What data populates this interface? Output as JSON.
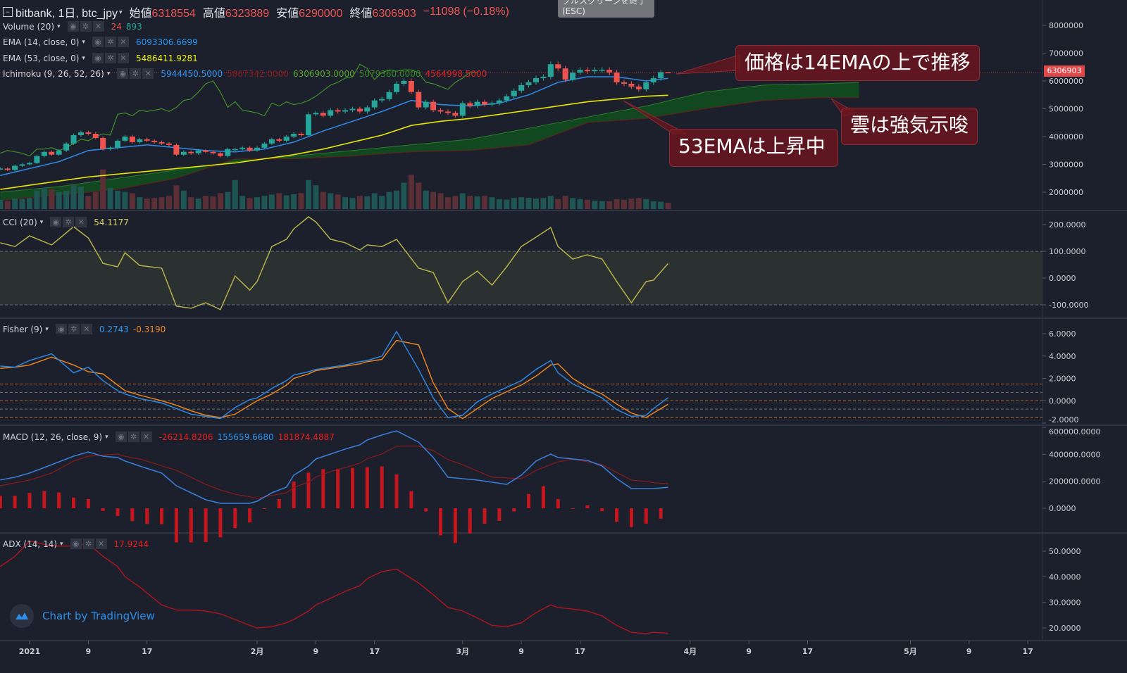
{
  "header": {
    "symbol": "bitbank, 1日, btc_jpy",
    "open_label": "始値",
    "open": "6318554",
    "high_label": "高値",
    "high": "6323889",
    "low_label": "安値",
    "low": "6290000",
    "close_label": "終値",
    "close": "6306903",
    "change": "−11098",
    "change_pct": "(−0.18%)"
  },
  "tooltip": "フルスクリーンを終了 (ESC)",
  "legends": {
    "volume": {
      "name": "Volume (20)",
      "v1": "24",
      "v2": "893"
    },
    "ema14": {
      "name": "EMA (14, close, 0)",
      "v1": "6093306.6699"
    },
    "ema53": {
      "name": "EMA (53, close, 0)",
      "v1": "5486411.9281"
    },
    "ichimoku": {
      "name": "Ichimoku (9, 26, 52, 26)",
      "v1": "5944450.5000",
      "v2": "5867342.0000",
      "v3": "6306903.0000",
      "v4": "5079360.0000",
      "v5": "4564998.5000"
    },
    "cci": {
      "name": "CCI (20)",
      "v1": "54.1177"
    },
    "fisher": {
      "name": "Fisher (9)",
      "v1": "0.2743",
      "v2": "-0.3190"
    },
    "macd": {
      "name": "MACD (12, 26, close, 9)",
      "v1": "-26214.8206",
      "v2": "155659.6680",
      "v3": "181874.4887"
    },
    "adx": {
      "name": "ADX (14, 14)",
      "v1": "17.9244"
    }
  },
  "controls": {
    "eye": "◉",
    "gear": "✲",
    "close": "✕",
    "caret": "▾"
  },
  "annotations": {
    "a1": "価格は14EMAの上で推移",
    "a2": "雲は強気示唆",
    "a3": "53EMAは上昇中"
  },
  "last_price_tag": "6306903",
  "watermark": "Chart by TradingView",
  "colors": {
    "background": "#1b202c",
    "up": "#26a69a",
    "down": "#ef5350",
    "ema14": "#2e86de",
    "ema53": "#e6e600",
    "lagging": "#3f8f2a",
    "cloud": "#124d1f",
    "cci": "#b5b04a",
    "fisher": "#2e86de",
    "fisher_trigger": "#e6821e",
    "macd": "#3a7bd5",
    "signal": "#8b1a1a",
    "histogram": "#c4161c",
    "adx": "#b0141c"
  },
  "chart_data": {
    "type": "candlestick-with-indicators",
    "x_ticks": [
      {
        "date": "2021-01-01",
        "label": "2021"
      },
      {
        "date": "2021-01-09",
        "label": "9"
      },
      {
        "date": "2021-01-17",
        "label": "17"
      },
      {
        "date": "2021-02-01",
        "label": "2月"
      },
      {
        "date": "2021-02-09",
        "label": "9"
      },
      {
        "date": "2021-02-17",
        "label": "17"
      },
      {
        "date": "2021-03-01",
        "label": "3月"
      },
      {
        "date": "2021-03-09",
        "label": "9"
      },
      {
        "date": "2021-03-17",
        "label": "17"
      },
      {
        "date": "2021-04-01",
        "label": "4月"
      },
      {
        "date": "2021-04-09",
        "label": "9"
      },
      {
        "date": "2021-04-17",
        "label": "17"
      },
      {
        "date": "2021-05-01",
        "label": "5月"
      },
      {
        "date": "2021-05-09",
        "label": "9"
      },
      {
        "date": "2021-05-17",
        "label": "17"
      }
    ],
    "price_axis": {
      "ticks": [
        8000000,
        7000000,
        6000000,
        5000000,
        4000000,
        3000000,
        2000000
      ],
      "labels": [
        "8000000",
        "7000000",
        "6000000",
        "5000000",
        "4000000",
        "3000000",
        "2000000"
      ]
    },
    "cci_axis": {
      "ticks": [
        200,
        100,
        0,
        -100
      ],
      "labels": [
        "200.0000",
        "100.0000",
        "0.0000",
        "-100.0000"
      ],
      "band": [
        -100,
        100
      ]
    },
    "fisher_axis": {
      "ticks": [
        6,
        4,
        2,
        0,
        -2
      ],
      "labels": [
        "6.0000",
        "4.0000",
        "2.0000",
        "0.0000",
        "-2.0000"
      ],
      "levels": [
        1.5,
        0.75,
        0,
        -0.75,
        -1.5
      ]
    },
    "macd_axis": {
      "ticks": [
        600000,
        400000,
        200000,
        0
      ],
      "labels": [
        "600000.0000",
        "400000.0000",
        "200000.0000",
        "0.0000"
      ]
    },
    "adx_axis": {
      "ticks": [
        50,
        40,
        30,
        20
      ],
      "labels": [
        "50.0000",
        "40.0000",
        "30.0000",
        "20.0000"
      ]
    },
    "last_candle": {
      "open": 6318554,
      "high": 6323889,
      "low": 6290000,
      "close": 6306903
    },
    "candles_date_close_volume": [
      [
        "2020-12-28",
        2850000,
        350
      ],
      [
        "2020-12-29",
        2800000,
        300
      ],
      [
        "2020-12-30",
        2950000,
        400
      ],
      [
        "2020-12-31",
        3000000,
        380
      ],
      [
        "2021-01-01",
        3050000,
        420
      ],
      [
        "2021-01-02",
        3300000,
        700
      ],
      [
        "2021-01-03",
        3450000,
        800
      ],
      [
        "2021-01-04",
        3350000,
        750
      ],
      [
        "2021-01-05",
        3500000,
        650
      ],
      [
        "2021-01-06",
        3750000,
        700
      ],
      [
        "2021-01-07",
        4050000,
        900
      ],
      [
        "2021-01-08",
        4150000,
        850
      ],
      [
        "2021-01-09",
        4100000,
        500
      ],
      [
        "2021-01-10",
        3950000,
        650
      ],
      [
        "2021-01-11",
        3550000,
        1500
      ],
      [
        "2021-01-12",
        3600000,
        800
      ],
      [
        "2021-01-13",
        3850000,
        700
      ],
      [
        "2021-01-14",
        4000000,
        650
      ],
      [
        "2021-01-15",
        3800000,
        600
      ],
      [
        "2021-01-16",
        3900000,
        450
      ],
      [
        "2021-01-17",
        3850000,
        400
      ],
      [
        "2021-01-18",
        3800000,
        420
      ],
      [
        "2021-01-19",
        3750000,
        450
      ],
      [
        "2021-01-20",
        3700000,
        500
      ],
      [
        "2021-01-21",
        3350000,
        900
      ],
      [
        "2021-01-22",
        3450000,
        700
      ],
      [
        "2021-01-23",
        3400000,
        450
      ],
      [
        "2021-01-24",
        3500000,
        400
      ],
      [
        "2021-01-25",
        3450000,
        500
      ],
      [
        "2021-01-26",
        3400000,
        480
      ],
      [
        "2021-01-27",
        3300000,
        600
      ],
      [
        "2021-01-28",
        3550000,
        650
      ],
      [
        "2021-01-29",
        3550000,
        1100
      ],
      [
        "2021-01-30",
        3600000,
        500
      ],
      [
        "2021-01-31",
        3500000,
        420
      ],
      [
        "2021-02-01",
        3600000,
        450
      ],
      [
        "2021-02-02",
        3750000,
        500
      ],
      [
        "2021-02-03",
        3900000,
        550
      ],
      [
        "2021-02-04",
        3850000,
        600
      ],
      [
        "2021-02-05",
        4000000,
        520
      ],
      [
        "2021-02-06",
        4100000,
        560
      ],
      [
        "2021-02-07",
        4050000,
        600
      ],
      [
        "2021-02-08",
        4800000,
        1100
      ],
      [
        "2021-02-09",
        4850000,
        900
      ],
      [
        "2021-02-10",
        4750000,
        650
      ],
      [
        "2021-02-11",
        4950000,
        600
      ],
      [
        "2021-02-12",
        4900000,
        550
      ],
      [
        "2021-02-13",
        4950000,
        450
      ],
      [
        "2021-02-14",
        5000000,
        420
      ],
      [
        "2021-02-15",
        4900000,
        500
      ],
      [
        "2021-02-16",
        5050000,
        480
      ],
      [
        "2021-02-17",
        5300000,
        600
      ],
      [
        "2021-02-18",
        5350000,
        500
      ],
      [
        "2021-02-19",
        5600000,
        650
      ],
      [
        "2021-02-20",
        5900000,
        700
      ],
      [
        "2021-02-21",
        6000000,
        1000
      ],
      [
        "2021-02-22",
        5600000,
        1300
      ],
      [
        "2021-02-23",
        5050000,
        1000
      ],
      [
        "2021-02-24",
        5250000,
        700
      ],
      [
        "2021-02-25",
        4950000,
        650
      ],
      [
        "2021-02-26",
        4900000,
        600
      ],
      [
        "2021-02-27",
        4850000,
        450
      ],
      [
        "2021-02-28",
        4750000,
        500
      ],
      [
        "2021-03-01",
        5200000,
        600
      ],
      [
        "2021-03-02",
        5100000,
        500
      ],
      [
        "2021-03-03",
        5250000,
        480
      ],
      [
        "2021-03-04",
        5150000,
        500
      ],
      [
        "2021-03-05",
        5200000,
        450
      ],
      [
        "2021-03-06",
        5300000,
        380
      ],
      [
        "2021-03-07",
        5450000,
        360
      ],
      [
        "2021-03-08",
        5650000,
        420
      ],
      [
        "2021-03-09",
        5850000,
        450
      ],
      [
        "2021-03-10",
        5950000,
        430
      ],
      [
        "2021-03-11",
        6100000,
        400
      ],
      [
        "2021-03-12",
        6150000,
        420
      ],
      [
        "2021-03-13",
        6600000,
        500
      ],
      [
        "2021-03-14",
        6450000,
        380
      ],
      [
        "2021-03-15",
        6050000,
        500
      ],
      [
        "2021-03-16",
        6300000,
        420
      ],
      [
        "2021-03-17",
        6400000,
        380
      ],
      [
        "2021-03-18",
        6350000,
        350
      ],
      [
        "2021-03-19",
        6400000,
        320
      ],
      [
        "2021-03-20",
        6400000,
        300
      ],
      [
        "2021-03-21",
        6300000,
        300
      ],
      [
        "2021-03-22",
        5950000,
        380
      ],
      [
        "2021-03-23",
        5900000,
        350
      ],
      [
        "2021-03-24",
        5800000,
        400
      ],
      [
        "2021-03-25",
        5700000,
        420
      ],
      [
        "2021-03-26",
        5950000,
        380
      ],
      [
        "2021-03-27",
        6100000,
        300
      ],
      [
        "2021-03-28",
        6318554,
        280
      ],
      [
        "2021-03-29",
        6306903,
        240
      ]
    ],
    "ema": {
      "dates": [
        "2020-12-28",
        "2021-01-01",
        "2021-01-05",
        "2021-01-09",
        "2021-01-13",
        "2021-01-17",
        "2021-01-21",
        "2021-01-25",
        "2021-01-29",
        "2021-02-02",
        "2021-02-06",
        "2021-02-10",
        "2021-02-14",
        "2021-02-18",
        "2021-02-22",
        "2021-02-26",
        "2021-03-02",
        "2021-03-06",
        "2021-03-10",
        "2021-03-14",
        "2021-03-18",
        "2021-03-22",
        "2021-03-26",
        "2021-03-29"
      ],
      "ema14": [
        2600000,
        2850000,
        3100000,
        3500000,
        3600000,
        3700000,
        3600000,
        3500000,
        3450000,
        3550000,
        3800000,
        4200000,
        4550000,
        4900000,
        5300000,
        5150000,
        5100000,
        5200000,
        5500000,
        5950000,
        6150000,
        6150000,
        6000000,
        6093307
      ],
      "ema53": [
        2100000,
        2250000,
        2400000,
        2550000,
        2650000,
        2750000,
        2850000,
        2950000,
        3050000,
        3200000,
        3350000,
        3550000,
        3800000,
        4050000,
        4400000,
        4550000,
        4650000,
        4800000,
        4950000,
        5100000,
        5250000,
        5350000,
        5450000,
        5486412
      ]
    },
    "ichimoku_cloud": {
      "dates": [
        "2020-12-28",
        "2021-01-05",
        "2021-01-13",
        "2021-01-21",
        "2021-01-29",
        "2021-02-06",
        "2021-02-14",
        "2021-02-22",
        "2021-03-02",
        "2021-03-10",
        "2021-03-18",
        "2021-03-26",
        "2021-04-03",
        "2021-04-11",
        "2021-04-19",
        "2021-04-24"
      ],
      "span_a": [
        2000000,
        2200000,
        2500000,
        2800000,
        3100000,
        3300000,
        3500000,
        3700000,
        3900000,
        4300000,
        4700000,
        5100000,
        5600000,
        5850000,
        5900000,
        5950000
      ],
      "span_b": [
        1700000,
        1900000,
        2100000,
        2500000,
        3200000,
        3200000,
        3300000,
        3450000,
        3500000,
        3700000,
        4500000,
        4650000,
        5000000,
        5300000,
        5400000,
        5400000
      ]
    },
    "oscillators": {
      "dates": [
        "2020-12-28",
        "2020-12-30",
        "2021-01-01",
        "2021-01-04",
        "2021-01-07",
        "2021-01-09",
        "2021-01-11",
        "2021-01-13",
        "2021-01-14",
        "2021-01-16",
        "2021-01-19",
        "2021-01-21",
        "2021-01-23",
        "2021-01-25",
        "2021-01-27",
        "2021-01-29",
        "2021-01-31",
        "2021-02-01",
        "2021-02-03",
        "2021-02-05",
        "2021-02-06",
        "2021-02-08",
        "2021-02-09",
        "2021-02-11",
        "2021-02-13",
        "2021-02-15",
        "2021-02-16",
        "2021-02-18",
        "2021-02-20",
        "2021-02-23",
        "2021-02-25",
        "2021-02-27",
        "2021-03-01",
        "2021-03-03",
        "2021-03-05",
        "2021-03-07",
        "2021-03-09",
        "2021-03-11",
        "2021-03-13",
        "2021-03-14",
        "2021-03-16",
        "2021-03-18",
        "2021-03-20",
        "2021-03-22",
        "2021-03-24",
        "2021-03-26",
        "2021-03-27",
        "2021-03-29"
      ],
      "cci": [
        132,
        118,
        158,
        124,
        192,
        150,
        55,
        42,
        95,
        47,
        37,
        -105,
        -113,
        -92,
        -118,
        8,
        -45,
        -13,
        118,
        145,
        184,
        229,
        210,
        145,
        132,
        105,
        124,
        118,
        145,
        37,
        21,
        -92,
        -13,
        26,
        -26,
        42,
        118,
        153,
        189,
        118,
        71,
        87,
        71,
        -13,
        -92,
        -13,
        -8,
        54.1177
      ],
      "fisher": [
        3.1,
        3.0,
        3.6,
        4.2,
        2.5,
        3.0,
        1.8,
        0.9,
        0.6,
        0.2,
        -0.2,
        -0.7,
        -1.2,
        -1.4,
        -1.6,
        -0.6,
        0.1,
        0.25,
        1.1,
        1.8,
        2.3,
        2.6,
        2.8,
        3.0,
        3.2,
        3.5,
        3.6,
        4.0,
        6.2,
        2.8,
        0.25,
        -1.5,
        -1.3,
        -0.1,
        0.6,
        1.2,
        1.8,
        2.8,
        3.6,
        2.5,
        1.5,
        0.9,
        0.25,
        -0.8,
        -1.4,
        -1.3,
        -0.7,
        0.2743
      ],
      "fisher_trigger": [
        2.9,
        3.0,
        3.2,
        3.9,
        3.2,
        2.6,
        2.4,
        1.4,
        0.9,
        0.5,
        0.0,
        -0.4,
        -0.9,
        -1.3,
        -1.5,
        -1.2,
        -0.4,
        0.0,
        0.6,
        1.4,
        2.0,
        2.4,
        2.7,
        2.9,
        3.1,
        3.3,
        3.5,
        3.7,
        5.4,
        5.0,
        1.6,
        -0.7,
        -1.6,
        -0.7,
        0.2,
        0.8,
        1.4,
        2.2,
        3.2,
        3.3,
        2.0,
        1.2,
        0.6,
        -0.3,
        -1.1,
        -1.5,
        -1.1,
        -0.319
      ],
      "macd": [
        209000,
        230000,
        261000,
        323000,
        386000,
        417000,
        386000,
        376000,
        350000,
        313000,
        261000,
        167000,
        115000,
        63000,
        37000,
        37000,
        37000,
        52000,
        115000,
        157000,
        245000,
        313000,
        365000,
        402000,
        438000,
        470000,
        506000,
        543000,
        574000,
        490000,
        376000,
        230000,
        219000,
        209000,
        193000,
        177000,
        245000,
        350000,
        402000,
        376000,
        365000,
        355000,
        313000,
        219000,
        146000,
        146000,
        146000,
        155660
      ],
      "macd_signal": [
        167000,
        188000,
        209000,
        261000,
        350000,
        386000,
        395000,
        402000,
        385000,
        365000,
        315000,
        282000,
        230000,
        177000,
        135000,
        104000,
        85000,
        73000,
        95000,
        115000,
        155000,
        193000,
        232000,
        271000,
        302000,
        334000,
        368000,
        402000,
        460000,
        460000,
        428000,
        360000,
        323000,
        276000,
        230000,
        225000,
        219000,
        280000,
        323000,
        345000,
        365000,
        345000,
        323000,
        265000,
        209000,
        198000,
        190000,
        181874
      ],
      "adx": [
        44,
        48,
        54,
        52,
        52,
        53,
        48,
        44,
        40,
        36,
        29,
        27,
        27,
        26.6,
        25.5,
        23.3,
        21,
        20,
        20.5,
        22,
        23.3,
        26.6,
        29,
        31.6,
        34.3,
        36.5,
        39.3,
        42,
        43,
        37.6,
        33,
        28,
        26.6,
        23.9,
        21,
        20.5,
        22,
        26,
        29,
        28,
        27.4,
        26.6,
        24.7,
        21,
        18.3,
        17.8,
        18.3,
        17.9244
      ]
    }
  }
}
